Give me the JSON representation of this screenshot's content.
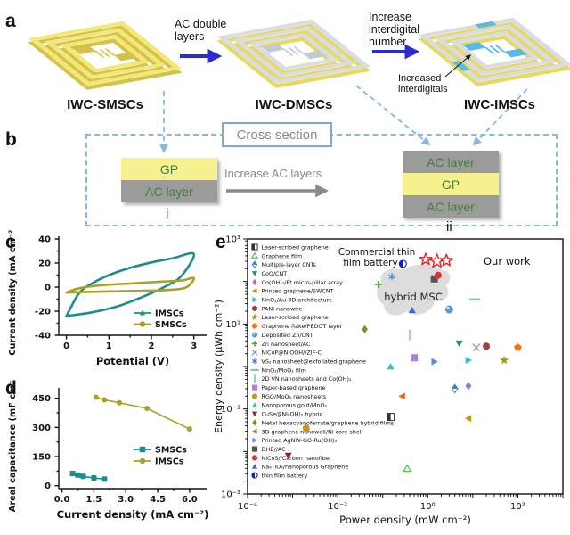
{
  "figure": {
    "panel_a": {
      "label": "a",
      "devices": [
        {
          "name": "IWC-SMSCs",
          "style": "yellow"
        },
        {
          "name": "IWC-DMSCs",
          "style": "gray"
        },
        {
          "name": "IWC-IMSCs",
          "style": "gray_blue"
        }
      ],
      "arrow1_label": "AC double layers",
      "arrow2_label": "Increase interdigital number",
      "annotation": "Increased interdigitals"
    },
    "panel_b": {
      "label": "b",
      "title": "Cross section",
      "arrow_label": "Increase AC layers",
      "left_stack": {
        "layers": [
          "GP",
          "AC layer"
        ],
        "caption": "i"
      },
      "right_stack": {
        "layers": [
          "AC layer",
          "GP",
          "AC layer"
        ],
        "caption": "ii"
      }
    },
    "panel_c": {
      "label": "c"
    },
    "panel_d": {
      "label": "d"
    },
    "panel_e": {
      "label": "e"
    }
  },
  "colors": {
    "device_yellow": "#f2e87a",
    "device_yellow_edge": "#d4c14a",
    "device_gray": "#d9dde1",
    "device_gray_pad": "#c4cad0",
    "device_substrate_yellow": "#e6d95e",
    "device_blue": "#59b9e8",
    "arrow_blue": "#2b2bcf",
    "connector_blue": "#8ab6e0",
    "gp_yellow": "#f7f08e",
    "ac_gray": "#9b9b9b",
    "layer_label_green": "#3f7f3f",
    "cross_section_gray": "#8a8a8a",
    "teal": "#1b8d8d",
    "olive": "#a8a125",
    "our_work_red": "#e82020",
    "hybrid_blob_gray": "#d8d8d8",
    "axis_black": "#111111"
  },
  "chart_data": [
    {
      "id": "c",
      "type": "line",
      "xlabel": "Potential (V)",
      "ylabel": "Current density (mA cm⁻²)",
      "xlim": [
        -0.18,
        3.3
      ],
      "ylim": [
        -40,
        40
      ],
      "xticks": [
        0,
        1,
        2,
        3
      ],
      "yticks": [
        -40,
        -20,
        0,
        20,
        40
      ],
      "legend_position": "lower right",
      "series": [
        {
          "name": "IMSCs",
          "color": "#1b8d8d",
          "marker": "triup",
          "loop": true,
          "upper": [
            [
              0,
              -24
            ],
            [
              0.3,
              -5
            ],
            [
              0.6,
              3
            ],
            [
              1.0,
              10
            ],
            [
              1.5,
              16
            ],
            [
              2.0,
              20.5
            ],
            [
              2.5,
              24
            ],
            [
              3.0,
              27.5
            ]
          ],
          "lower": [
            [
              0,
              -24
            ],
            [
              0.6,
              -21
            ],
            [
              1.2,
              -16
            ],
            [
              1.8,
              -8
            ],
            [
              2.3,
              0
            ],
            [
              2.7,
              9
            ],
            [
              3.0,
              27.5
            ]
          ]
        },
        {
          "name": "SMSCs",
          "color": "#a8a125",
          "marker": "circle",
          "loop": true,
          "upper": [
            [
              0,
              -4.5
            ],
            [
              0.3,
              -1
            ],
            [
              0.8,
              1.5
            ],
            [
              1.5,
              3
            ],
            [
              2.2,
              4.5
            ],
            [
              2.7,
              5.5
            ],
            [
              3.0,
              7.5
            ]
          ],
          "lower": [
            [
              0,
              -4.5
            ],
            [
              0.8,
              -3.8
            ],
            [
              1.6,
              -3.2
            ],
            [
              2.3,
              -2.5
            ],
            [
              2.8,
              -0.5
            ],
            [
              3.0,
              7.5
            ]
          ]
        }
      ]
    },
    {
      "id": "d",
      "type": "line",
      "xlabel": "Current density (mA cm⁻²)",
      "ylabel": "Areal capacitance (mF cm⁻²)",
      "xlim": [
        -0.15,
        6.8
      ],
      "ylim": [
        -15,
        490
      ],
      "xticks": [
        0,
        1.5,
        3,
        4.5,
        6
      ],
      "yticks": [
        0,
        150,
        300,
        450
      ],
      "legend_position": "center right",
      "series": [
        {
          "name": "SMSCs",
          "color": "#1b8d8d",
          "marker": "square",
          "points": [
            [
              0.5,
              63
            ],
            [
              0.75,
              55
            ],
            [
              1.0,
              48
            ],
            [
              1.5,
              40
            ],
            [
              2.0,
              34
            ]
          ]
        },
        {
          "name": "IMSCs",
          "color": "#a8a125",
          "marker": "circle",
          "points": [
            [
              1.6,
              455
            ],
            [
              2.0,
              442
            ],
            [
              2.7,
              427
            ],
            [
              4.0,
              398
            ],
            [
              6.0,
              292
            ]
          ]
        }
      ]
    },
    {
      "id": "e",
      "type": "scatter",
      "xlabel": "Power density (mW cm⁻²)",
      "ylabel": "Energy density (μWh cm⁻²)",
      "xscale": "log",
      "yscale": "log",
      "xlim": [
        0.0001,
        1000
      ],
      "ylim": [
        0.001,
        1000
      ],
      "xtick_labels": {
        "-4": "10⁻⁴",
        "-2": "10⁻²",
        "0": "10⁰",
        "2": "10²"
      },
      "ytick_labels": {
        "-3": "10⁻³",
        "-1": "10⁻¹",
        "1": "10¹",
        "3": "10³"
      },
      "legend_position": "upper left",
      "series": [
        {
          "name": "Laser-scribed graphene",
          "marker": "halfsquare",
          "color": "#333333",
          "points": [
            [
              0.15,
              0.065
            ]
          ]
        },
        {
          "name": "Graphene film",
          "marker": "triup-open",
          "color": "#44cc44",
          "points": [
            [
              0.35,
              0.004
            ]
          ]
        },
        {
          "name": "Multiple-layer CNTs",
          "marker": "halfdiamond",
          "color": "#2f7ed8",
          "points": [
            [
              4,
              0.3
            ]
          ]
        },
        {
          "name": "CoO/CNT",
          "marker": "tridown",
          "color": "#2e8b57",
          "points": [
            [
              5,
              3.5
            ]
          ]
        },
        {
          "name": "Co(OH)₂/Pt micro-pillar array",
          "marker": "diamond",
          "color": "#9f6fd8",
          "points": [
            [
              8,
              0.35
            ]
          ]
        },
        {
          "name": "Printed graphene/SWCNT",
          "marker": "trileft",
          "color": "#c09912",
          "points": [
            [
              8,
              0.06
            ]
          ]
        },
        {
          "name": "MnO₂/Au 3D architecture",
          "marker": "triright",
          "color": "#27c4c4",
          "points": [
            [
              8,
              1.4
            ]
          ]
        },
        {
          "name": "PANI nanowire",
          "marker": "circle",
          "color": "#9c4242",
          "points": [
            [
              20,
              3
            ]
          ]
        },
        {
          "name": "Laser-scribed graphene",
          "marker": "star",
          "color": "#9a9a20",
          "points": [
            [
              50,
              1.4
            ]
          ]
        },
        {
          "name": "Graphene flake/PEDOT layer",
          "marker": "pentagon",
          "color": "#f07818",
          "points": [
            [
              100,
              2.8
            ]
          ]
        },
        {
          "name": "Deposited Zn/CNT",
          "marker": "sphere",
          "color": "#5b9bd5",
          "points": [
            [
              3,
              22
            ]
          ]
        },
        {
          "name": "Zn nanosheet/AC",
          "marker": "plus",
          "color": "#55aa22",
          "points": [
            [
              0.08,
              85
            ]
          ]
        },
        {
          "name": "NiCoP@NiOOH//ZIF-C",
          "marker": "x",
          "color": "#999999",
          "points": [
            [
              12,
              2.8
            ]
          ]
        },
        {
          "name": "VS₂ nanosheet@exfoliated graphene",
          "marker": "asterisk",
          "color": "#3a7bd5",
          "points": [
            [
              0.16,
              130
            ]
          ]
        },
        {
          "name": "MnO₂/MoO₂ film",
          "marker": "hline",
          "color": "#85b8e8",
          "points": [
            [
              11,
              38
            ]
          ]
        },
        {
          "name": "2D VN nanosheets and Co(OH)₂",
          "marker": "vline",
          "color": "#96d9b4",
          "points": [
            [
              0.4,
              5.5
            ]
          ]
        },
        {
          "name": "Paper-based graphene",
          "marker": "square",
          "color": "#b07fd8",
          "points": [
            [
              0.5,
              1.6
            ]
          ]
        },
        {
          "name": "RGO/MoO₃ nanosheets",
          "marker": "circle",
          "color": "#c8971b",
          "points": [
            [
              0.002,
              0.035
            ]
          ]
        },
        {
          "name": "Nanoporous gold/MnO₂",
          "marker": "triup",
          "color": "#28c4cc",
          "points": [
            [
              0.15,
              1.0
            ]
          ]
        },
        {
          "name": "CuSe@Ni(OH)₂ hybrid",
          "marker": "tridown",
          "color": "#8b2a2a",
          "points": [
            [
              0.0008,
              0.008
            ]
          ]
        },
        {
          "name": "Metal hexacyanoferrate/graphene hybrid films",
          "marker": "diamond",
          "color": "#8a8a1a",
          "points": [
            [
              0.04,
              7.5
            ]
          ]
        },
        {
          "name": "3D graphene nanowall/Ni core shell",
          "marker": "trileft",
          "color": "#f06018",
          "points": [
            [
              0.27,
              0.2
            ]
          ]
        },
        {
          "name": "Printed AgNW-GO-Ru(OH)₃",
          "marker": "triright",
          "color": "#5b8fd5",
          "points": [
            [
              1.4,
              1.3
            ]
          ]
        },
        {
          "name": "DHB//AC",
          "marker": "square",
          "color": "#555555",
          "points": [
            [
              1.4,
              115
            ]
          ]
        },
        {
          "name": "NiCoS//Carbon nanofiber",
          "marker": "circle",
          "color": "#e03030",
          "points": [
            [
              1.7,
              140
            ]
          ]
        },
        {
          "name": "Na₄TiO₄/nanoporous Graphene",
          "marker": "triup",
          "color": "#2f6fd8",
          "points": [
            [
              0.45,
              21
            ]
          ]
        },
        {
          "name": "thin film battery",
          "marker": "halfcircle",
          "color": "#1a1ad0",
          "points": [
            [
              0.28,
              260
            ]
          ]
        }
      ],
      "our_work": {
        "label": "Our work",
        "marker": "star-open",
        "color": "#e82020",
        "points": [
          [
            0.9,
            330
          ],
          [
            1.6,
            300
          ],
          [
            2.6,
            310
          ]
        ]
      },
      "annotations": {
        "battery_label_line1": "Commercial thin",
        "battery_label_line2": "film battery",
        "region_label": "hybrid MSC"
      }
    }
  ]
}
